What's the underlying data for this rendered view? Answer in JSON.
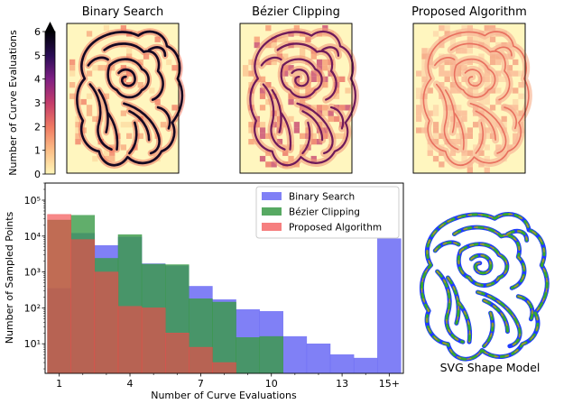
{
  "figure": {
    "cbar": {
      "label": "Number of Curve Evaluations",
      "ticks": [
        "0",
        "1",
        "2",
        "3",
        "4",
        "5",
        "6"
      ],
      "range": [
        0,
        6
      ],
      "colors": [
        "#fff6b8",
        "#fcbd86",
        "#f07a63",
        "#c43c6b",
        "#7e1f84",
        "#2b0d56",
        "#000004"
      ]
    },
    "heatmaps": [
      {
        "title": "Binary Search",
        "style": "dark"
      },
      {
        "title": "Bézier Clipping",
        "style": "medium"
      },
      {
        "title": "Proposed Algorithm",
        "style": "light"
      }
    ],
    "shape_model": {
      "caption": "SVG Shape Model",
      "stroke_colors": [
        "#1f3cff",
        "#38a82e",
        "#a98f3a"
      ]
    }
  },
  "chart_data": {
    "type": "bar",
    "xlabel": "Number of Curve Evaluations",
    "ylabel": "Number of Sampled Points",
    "yscale": "log",
    "ylim": [
      1.5,
      300000
    ],
    "x_tick_labels": [
      "1",
      "4",
      "7",
      "10",
      "13",
      "15+"
    ],
    "x_tick_values": [
      1,
      4,
      7,
      10,
      13,
      15
    ],
    "y_tick_labels": [
      "10¹",
      "10²",
      "10³",
      "10⁴",
      "10⁵"
    ],
    "y_tick_values": [
      10,
      100,
      1000,
      10000,
      100000
    ],
    "x": [
      1,
      2,
      3,
      4,
      5,
      6,
      7,
      8,
      9,
      10,
      11,
      12,
      13,
      14,
      15
    ],
    "series": [
      {
        "name": "Binary Search",
        "color": "#6a6af4",
        "values": [
          350,
          12000,
          5500,
          9500,
          1700,
          1500,
          400,
          170,
          90,
          80,
          16,
          10,
          5,
          4,
          8500
        ]
      },
      {
        "name": "Bézier Clipping",
        "color": "#3a9a46",
        "values": [
          28000,
          38000,
          2400,
          11000,
          1650,
          1600,
          180,
          145,
          15,
          16,
          null,
          null,
          null,
          null,
          null
        ]
      },
      {
        "name": "Proposed Algorithm",
        "color": "#f24848",
        "values": [
          40000,
          8000,
          1000,
          110,
          100,
          20,
          8,
          3,
          null,
          null,
          null,
          null,
          null,
          null,
          null
        ]
      }
    ],
    "legend": "top-right"
  }
}
